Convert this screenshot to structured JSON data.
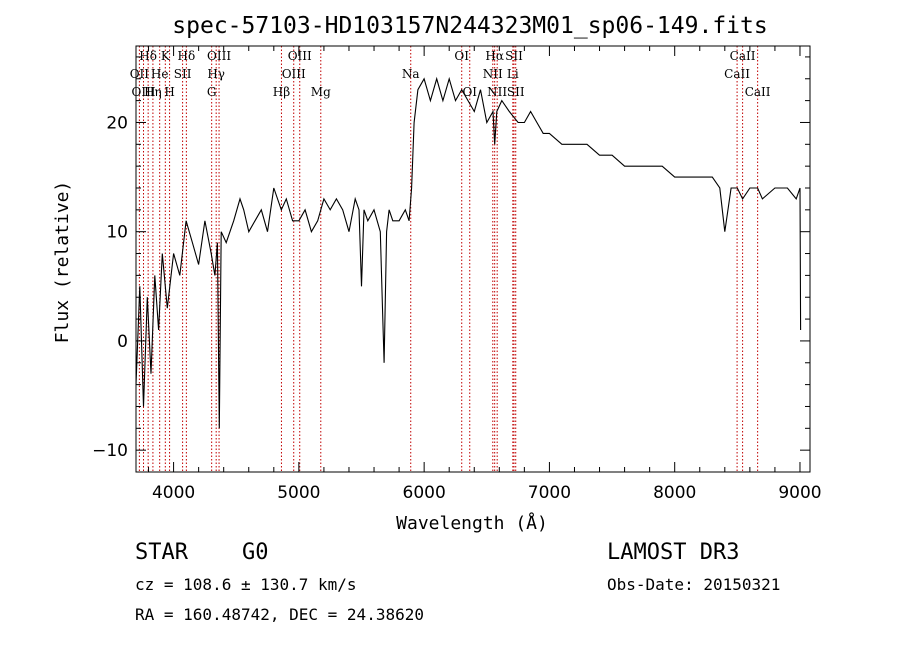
{
  "chart_data": {
    "type": "line",
    "title": "spec-57103-HD103157N244323M01_sp06-149.fits",
    "xlabel": "Wavelength (Å)",
    "ylabel": "Flux (relative)",
    "xlim": [
      3700,
      9080
    ],
    "ylim": [
      -12,
      27
    ],
    "xticks": [
      4000,
      5000,
      6000,
      7000,
      8000,
      9000
    ],
    "yticks": [
      -10,
      0,
      10,
      20
    ],
    "series": [
      {
        "name": "flux",
        "x": [
          3700,
          3730,
          3760,
          3790,
          3820,
          3850,
          3880,
          3910,
          3950,
          4000,
          4050,
          4100,
          4150,
          4200,
          4250,
          4300,
          4330,
          4350,
          4365,
          4380,
          4420,
          4480,
          4530,
          4560,
          4600,
          4650,
          4700,
          4750,
          4800,
          4860,
          4900,
          4950,
          5000,
          5050,
          5100,
          5150,
          5200,
          5250,
          5300,
          5350,
          5400,
          5450,
          5480,
          5500,
          5520,
          5550,
          5600,
          5650,
          5670,
          5680,
          5700,
          5720,
          5750,
          5800,
          5850,
          5880,
          5900,
          5920,
          5950,
          6000,
          6050,
          6100,
          6150,
          6200,
          6250,
          6300,
          6350,
          6400,
          6450,
          6500,
          6550,
          6563,
          6580,
          6620,
          6680,
          6750,
          6800,
          6850,
          6900,
          6950,
          7000,
          7100,
          7200,
          7300,
          7400,
          7500,
          7600,
          7700,
          7800,
          7900,
          8000,
          8100,
          8200,
          8300,
          8360,
          8400,
          8450,
          8500,
          8542,
          8600,
          8662,
          8700,
          8800,
          8900,
          8970,
          9000,
          9005
        ],
        "y": [
          -4,
          5,
          -6,
          4,
          -3,
          6,
          1,
          8,
          3,
          8,
          6,
          11,
          9,
          7,
          11,
          8,
          6,
          9,
          -8,
          10,
          9,
          11,
          13,
          12,
          10,
          11,
          12,
          10,
          14,
          12,
          13,
          11,
          11,
          12,
          10,
          11,
          13,
          12,
          13,
          12,
          10,
          13,
          12,
          5,
          12,
          11,
          12,
          10,
          2,
          -2,
          10,
          12,
          11,
          11,
          12,
          11,
          14,
          20,
          23,
          24,
          22,
          24,
          22,
          24,
          22,
          23,
          22,
          21,
          23,
          20,
          21,
          18,
          21,
          22,
          21,
          20,
          20,
          21,
          20,
          19,
          19,
          18,
          18,
          18,
          17,
          17,
          16,
          16,
          16,
          16,
          15,
          15,
          15,
          15,
          14,
          10,
          14,
          14,
          13,
          14,
          14,
          13,
          14,
          14,
          13,
          14,
          1
        ]
      }
    ],
    "lines": [
      {
        "name": "Hδ",
        "x": 3797,
        "label": "Hδ",
        "row": 0
      },
      {
        "name": "K",
        "x": 3934,
        "label": "K",
        "row": 0
      },
      {
        "name": "Hδ2",
        "x": 4102,
        "label": "Hδ",
        "row": 0
      },
      {
        "name": "OIII_a",
        "x": 4363,
        "label": "OIII",
        "row": 0
      },
      {
        "name": "OIII_b",
        "x": 5007,
        "label": "OIII",
        "row": 0
      },
      {
        "name": "OI_a",
        "x": 6300,
        "label": "OI",
        "row": 0
      },
      {
        "name": "Hα",
        "x": 6563,
        "label": "Hα",
        "row": 0
      },
      {
        "name": "SII_a",
        "x": 6717,
        "label": "SII",
        "row": 0
      },
      {
        "name": "CaII_a",
        "x": 8542,
        "label": "CaII",
        "row": 0
      },
      {
        "name": "OII",
        "x": 3727,
        "label": "OII",
        "row": 1
      },
      {
        "name": "He",
        "x": 3889,
        "label": "He",
        "row": 1
      },
      {
        "name": "SII_b",
        "x": 4072,
        "label": "SII",
        "row": 1
      },
      {
        "name": "Hγ",
        "x": 4340,
        "label": "Hγ",
        "row": 1
      },
      {
        "name": "OIII_c",
        "x": 4959,
        "label": "OIII",
        "row": 1
      },
      {
        "name": "Na",
        "x": 5893,
        "label": "Na",
        "row": 1
      },
      {
        "name": "NII_a",
        "x": 6548,
        "label": "NII",
        "row": 1
      },
      {
        "name": "Li",
        "x": 6708,
        "label": "Li",
        "row": 1
      },
      {
        "name": "CaII_b",
        "x": 8498,
        "label": "CaII",
        "row": 1
      },
      {
        "name": "OIII_d",
        "x": 3760,
        "label": "OIII",
        "row": 2
      },
      {
        "name": "Hη",
        "x": 3835,
        "label": "Hη",
        "row": 2
      },
      {
        "name": "H",
        "x": 3968,
        "label": "H",
        "row": 2
      },
      {
        "name": "G",
        "x": 4304,
        "label": "G",
        "row": 2
      },
      {
        "name": "Hβ",
        "x": 4861,
        "label": "Hβ",
        "row": 2
      },
      {
        "name": "Mg",
        "x": 5175,
        "label": "Mg",
        "row": 2
      },
      {
        "name": "OI_b",
        "x": 6364,
        "label": "OI",
        "row": 2
      },
      {
        "name": "NII_b",
        "x": 6583,
        "label": "NII",
        "row": 2
      },
      {
        "name": "SII_c",
        "x": 6731,
        "label": "SII",
        "row": 2
      },
      {
        "name": "CaII_c",
        "x": 8662,
        "label": "CaII",
        "row": 2
      }
    ],
    "grid": false
  },
  "info": {
    "object_type": "STAR",
    "subclass": "G0",
    "survey": "LAMOST DR3",
    "cz": "cz = 108.6 ± 130.7 km/s",
    "obs_date": "Obs-Date: 20150321",
    "coords": "RA = 160.48742, DEC =  24.38620"
  },
  "colors": {
    "line_marker": "#c00000",
    "spectrum": "#000000"
  }
}
